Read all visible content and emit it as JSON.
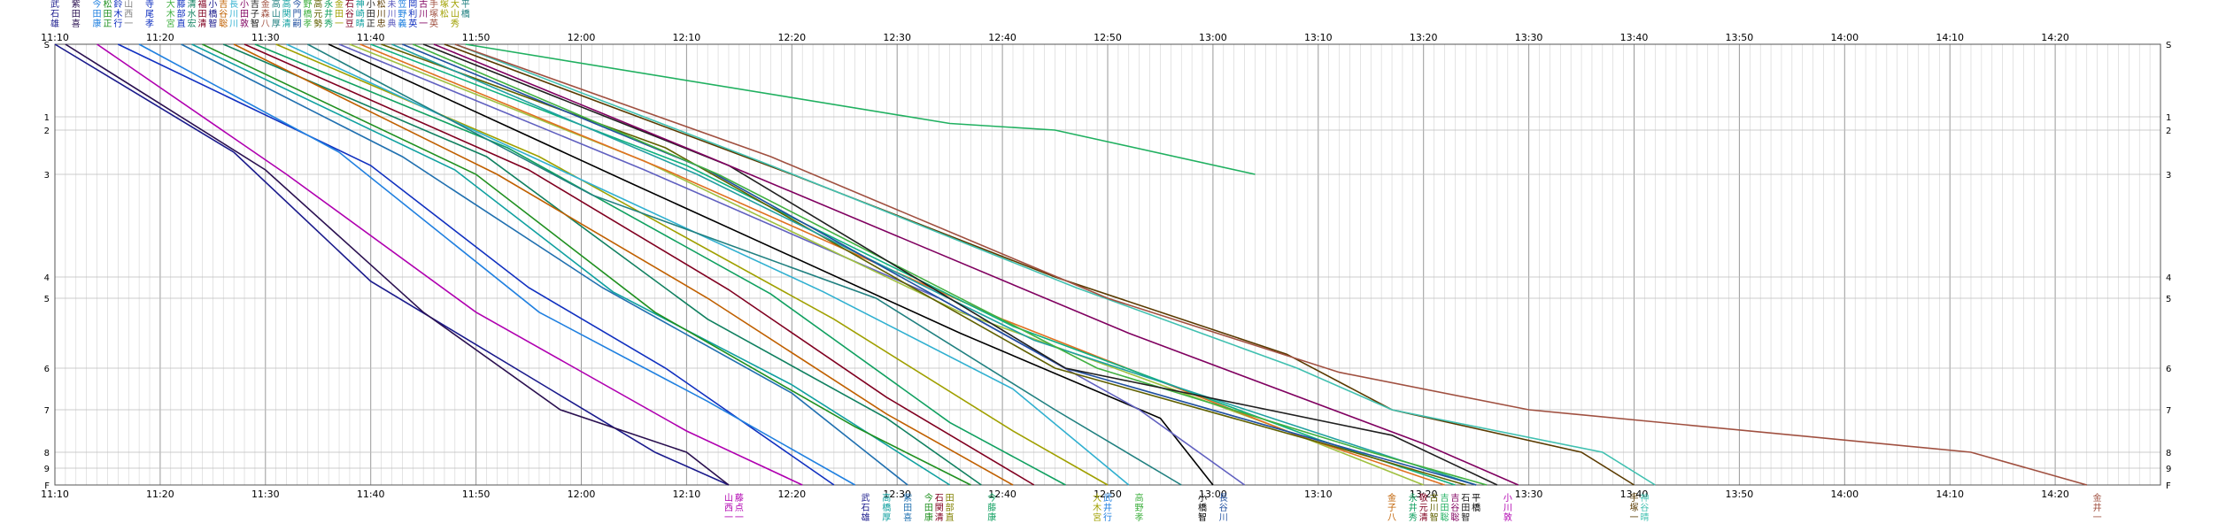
{
  "chart_data": {
    "type": "line",
    "title": "",
    "xlabel": "",
    "ylabel": "",
    "x_unit": "clock time (hh:mm)",
    "xlim": [
      "11:10",
      "14:30"
    ],
    "x_ticks": [
      "11:10",
      "11:20",
      "11:30",
      "11:40",
      "11:50",
      "12:00",
      "12:10",
      "12:20",
      "12:30",
      "12:40",
      "12:50",
      "13:00",
      "13:10",
      "13:20",
      "13:30",
      "13:40",
      "13:50",
      "14:00",
      "14:10",
      "14:20"
    ],
    "y_ticks": [
      "S",
      "1",
      "2",
      "3",
      "4",
      "5",
      "6",
      "7",
      "8",
      "9",
      "F"
    ],
    "y_order": "top-to-bottom",
    "grid": true,
    "legend": "names printed vertically at line start (top) and line end (bottom)",
    "series": [
      {
        "color": "#1a1a8c",
        "points": [
          [
            "11:10",
            "S"
          ],
          [
            "11:27",
            "2.5"
          ],
          [
            "11:40",
            "4.2"
          ],
          [
            "11:57",
            "6.5"
          ],
          [
            "12:07",
            "8"
          ],
          [
            "12:14",
            "F"
          ]
        ]
      },
      {
        "color": "#2a1050",
        "points": [
          [
            "11:11",
            "S"
          ],
          [
            "11:30",
            "2.9"
          ],
          [
            "11:45",
            "5.2"
          ],
          [
            "11:58",
            "7"
          ],
          [
            "12:10",
            "8"
          ],
          [
            "12:14",
            "F"
          ]
        ]
      },
      {
        "color": "#b000b0",
        "points": [
          [
            "11:14",
            "S"
          ],
          [
            "11:32",
            "3"
          ],
          [
            "11:50",
            "5.2"
          ],
          [
            "12:10",
            "7.5"
          ],
          [
            "12:21",
            "F"
          ]
        ]
      },
      {
        "color": "#1030c0",
        "points": [
          [
            "11:16",
            "S"
          ],
          [
            "11:40",
            "2.8"
          ],
          [
            "11:55",
            "4.5"
          ],
          [
            "12:08",
            "6"
          ],
          [
            "12:24",
            "F"
          ]
        ]
      },
      {
        "color": "#2080e0",
        "points": [
          [
            "11:18",
            "S"
          ],
          [
            "11:37",
            "2.5"
          ],
          [
            "11:56",
            "5.2"
          ],
          [
            "12:12",
            "6.8"
          ],
          [
            "12:26",
            "F"
          ]
        ]
      },
      {
        "color": "#2070b0",
        "points": [
          [
            "11:22",
            "S"
          ],
          [
            "11:43",
            "2.6"
          ],
          [
            "12:02",
            "4.5"
          ],
          [
            "12:20",
            "6.6"
          ],
          [
            "12:31",
            "F"
          ]
        ]
      },
      {
        "color": "#10a0a0",
        "points": [
          [
            "11:23",
            "S"
          ],
          [
            "11:48",
            "2.9"
          ],
          [
            "12:03",
            "4.7"
          ],
          [
            "12:20",
            "6.4"
          ],
          [
            "12:35",
            "F"
          ]
        ]
      },
      {
        "color": "#209020",
        "points": [
          [
            "11:24",
            "S"
          ],
          [
            "11:50",
            "3"
          ],
          [
            "12:07",
            "5.2"
          ],
          [
            "12:26",
            "7.4"
          ],
          [
            "12:37",
            "F"
          ]
        ]
      },
      {
        "color": "#108060",
        "points": [
          [
            "11:26",
            "S"
          ],
          [
            "11:51",
            "2.6"
          ],
          [
            "12:12",
            "5.3"
          ],
          [
            "12:29",
            "7.2"
          ],
          [
            "12:38",
            "F"
          ]
        ]
      },
      {
        "color": "#c06000",
        "points": [
          [
            "11:27",
            "S"
          ],
          [
            "11:52",
            "3"
          ],
          [
            "12:12",
            "5"
          ],
          [
            "12:29",
            "7.1"
          ],
          [
            "12:41",
            "F"
          ]
        ]
      },
      {
        "color": "#800020",
        "points": [
          [
            "11:28",
            "S"
          ],
          [
            "11:55",
            "2.9"
          ],
          [
            "12:14",
            "4.6"
          ],
          [
            "12:29",
            "6.7"
          ],
          [
            "12:43",
            "F"
          ]
        ]
      },
      {
        "color": "#10a060",
        "points": [
          [
            "11:29",
            "S"
          ],
          [
            "11:53",
            "2.4"
          ],
          [
            "12:18",
            "4.8"
          ],
          [
            "12:35",
            "7.3"
          ],
          [
            "12:46",
            "F"
          ]
        ]
      },
      {
        "color": "#a0a000",
        "points": [
          [
            "11:31",
            "S"
          ],
          [
            "11:56",
            "2.6"
          ],
          [
            "12:24",
            "5.3"
          ],
          [
            "12:41",
            "7.5"
          ],
          [
            "12:50",
            "F"
          ]
        ]
      },
      {
        "color": "#30b0d0",
        "points": [
          [
            "11:32",
            "S"
          ],
          [
            "11:58",
            "2.9"
          ],
          [
            "12:23",
            "4.7"
          ],
          [
            "12:41",
            "6.5"
          ],
          [
            "12:52",
            "F"
          ]
        ]
      },
      {
        "color": "#208080",
        "points": [
          [
            "11:34",
            "S"
          ],
          [
            "12:01",
            "3.2"
          ],
          [
            "12:28",
            "5"
          ],
          [
            "12:45",
            "7"
          ],
          [
            "12:57",
            "F"
          ]
        ]
      },
      {
        "color": "#000000",
        "points": [
          [
            "11:36",
            "S"
          ],
          [
            "12:05",
            "3.1"
          ],
          [
            "12:36",
            "5.5"
          ],
          [
            "12:55",
            "7.2"
          ],
          [
            "13:00",
            "F"
          ]
        ]
      },
      {
        "color": "#6060c0",
        "points": [
          [
            "11:37",
            "S"
          ],
          [
            "12:06",
            "2.9"
          ],
          [
            "12:34",
            "5"
          ],
          [
            "12:53",
            "7"
          ],
          [
            "13:03",
            "F"
          ]
        ]
      },
      {
        "color": "#a0c040",
        "points": [
          [
            "11:38",
            "S"
          ],
          [
            "12:06",
            "2.7"
          ],
          [
            "12:36",
            "5.2"
          ],
          [
            "13:06",
            "7.4"
          ],
          [
            "13:20",
            "F"
          ]
        ]
      },
      {
        "color": "#e07020",
        "points": [
          [
            "11:39",
            "S"
          ],
          [
            "12:08",
            "2.9"
          ],
          [
            "12:40",
            "5.3"
          ],
          [
            "13:08",
            "7.6"
          ],
          [
            "13:22",
            "F"
          ]
        ]
      },
      {
        "color": "#10b080",
        "points": [
          [
            "11:40",
            "S"
          ],
          [
            "12:10",
            "2.8"
          ],
          [
            "12:41",
            "5.4"
          ],
          [
            "13:10",
            "7.7"
          ],
          [
            "13:23",
            "F"
          ]
        ]
      },
      {
        "color": "#606000",
        "points": [
          [
            "11:41",
            "S"
          ],
          [
            "12:08",
            "2.4"
          ],
          [
            "12:45",
            "6"
          ],
          [
            "13:12",
            "7.9"
          ],
          [
            "13:24",
            "F"
          ]
        ]
      },
      {
        "color": "#20a0a0",
        "points": [
          [
            "11:42",
            "S"
          ],
          [
            "12:11",
            "3"
          ],
          [
            "12:43",
            "5.6"
          ],
          [
            "13:13",
            "7.8"
          ],
          [
            "13:25",
            "F"
          ]
        ]
      },
      {
        "color": "#2050a0",
        "points": [
          [
            "11:43",
            "S"
          ],
          [
            "12:12",
            "2.9"
          ],
          [
            "12:46",
            "6"
          ],
          [
            "13:14",
            "8"
          ],
          [
            "13:25",
            "F"
          ]
        ]
      },
      {
        "color": "#40b040",
        "points": [
          [
            "11:44",
            "S"
          ],
          [
            "12:13",
            "3"
          ],
          [
            "12:49",
            "6"
          ],
          [
            "13:15",
            "8"
          ],
          [
            "13:26",
            "F"
          ]
        ]
      },
      {
        "color": "#202020",
        "points": [
          [
            "11:45",
            "S"
          ],
          [
            "12:14",
            "2.8"
          ],
          [
            "12:46",
            "6"
          ],
          [
            "13:17",
            "7.6"
          ],
          [
            "13:27",
            "F"
          ]
        ]
      },
      {
        "color": "#800060",
        "points": [
          [
            "11:46",
            "S"
          ],
          [
            "12:12",
            "2.6"
          ],
          [
            "12:52",
            "5.5"
          ],
          [
            "13:20",
            "7.8"
          ],
          [
            "13:29",
            "F"
          ]
        ]
      },
      {
        "color": "#5a3a00",
        "points": [
          [
            "11:47",
            "S"
          ],
          [
            "12:20",
            "3"
          ],
          [
            "12:45",
            "4"
          ],
          [
            "13:07",
            "5.8"
          ],
          [
            "13:17",
            "7"
          ],
          [
            "13:35",
            "8"
          ],
          [
            "13:40",
            "F"
          ]
        ]
      },
      {
        "color": "#40c0b0",
        "points": [
          [
            "11:48",
            "S"
          ],
          [
            "12:18",
            "2.8"
          ],
          [
            "12:47",
            "4.5"
          ],
          [
            "13:08",
            "6"
          ],
          [
            "13:17",
            "7"
          ],
          [
            "13:37",
            "8"
          ],
          [
            "13:42",
            "F"
          ]
        ]
      },
      {
        "color": "#a05040",
        "points": [
          [
            "11:48",
            "S"
          ],
          [
            "12:18",
            "2.6"
          ],
          [
            "12:50",
            "5"
          ],
          [
            "13:12",
            "6.1"
          ],
          [
            "13:30",
            "7"
          ],
          [
            "14:12",
            "8"
          ],
          [
            "14:23",
            "F"
          ]
        ]
      },
      {
        "color": "#20b060",
        "points": [
          [
            "11:49",
            "S"
          ],
          [
            "12:35",
            "1.5"
          ],
          [
            "12:45",
            "2"
          ],
          [
            "13:04",
            "3"
          ]
        ]
      }
    ],
    "start_labels": [
      {
        "text": "武石雄",
        "at": "11:10",
        "color": "#1a1a8c"
      },
      {
        "text": "紫田喜",
        "at": "11:12",
        "color": "#2a1050"
      },
      {
        "text": "今田康",
        "at": "11:14",
        "color": "#2080e0"
      },
      {
        "text": "松田正",
        "at": "11:15",
        "color": "#209020"
      },
      {
        "text": "鈴木行",
        "at": "11:16",
        "color": "#1030c0"
      },
      {
        "text": "山西一",
        "at": "11:17",
        "color": "#808080"
      },
      {
        "text": "寺尾孝",
        "at": "11:19",
        "color": "#1030c0"
      },
      {
        "text": "大木宮",
        "at": "11:21",
        "color": "#40b040"
      },
      {
        "text": "藤部直",
        "at": "11:22",
        "color": "#1030c0"
      },
      {
        "text": "清水宏",
        "at": "11:23",
        "color": "#108060"
      },
      {
        "text": "福田清",
        "at": "11:24",
        "color": "#800020"
      },
      {
        "text": "小橋智",
        "at": "11:25",
        "color": "#1a1a8c"
      },
      {
        "text": "吉谷聡",
        "at": "11:26",
        "color": "#c06000"
      },
      {
        "text": "長川川",
        "at": "11:27",
        "color": "#30b0d0"
      },
      {
        "text": "小田敦",
        "at": "11:28",
        "color": "#800060"
      },
      {
        "text": "吉子智",
        "at": "11:29",
        "color": "#202020"
      },
      {
        "text": "金森八",
        "at": "11:30",
        "color": "#a05040"
      },
      {
        "text": "高山厚",
        "at": "11:31",
        "color": "#208080"
      },
      {
        "text": "高関清",
        "at": "11:32",
        "color": "#10a0a0"
      },
      {
        "text": "今門嗣",
        "at": "11:33",
        "color": "#2050a0"
      },
      {
        "text": "野橋孝",
        "at": "11:34",
        "color": "#40b040"
      },
      {
        "text": "高元勢",
        "at": "11:35",
        "color": "#606000"
      },
      {
        "text": "永井秀",
        "at": "11:36",
        "color": "#10a060"
      },
      {
        "text": "金田一",
        "at": "11:37",
        "color": "#a0a000"
      },
      {
        "text": "石谷豆",
        "at": "11:38",
        "color": "#800020"
      },
      {
        "text": "神崎晴",
        "at": "11:39",
        "color": "#10a0a0"
      },
      {
        "text": "小田正",
        "at": "11:40",
        "color": "#202020"
      },
      {
        "text": "松川忠",
        "at": "11:41",
        "color": "#5a3a00"
      },
      {
        "text": "未川典",
        "at": "11:42",
        "color": "#6060c0"
      },
      {
        "text": "笠野義",
        "at": "11:43",
        "color": "#2080e0"
      },
      {
        "text": "岡利英",
        "at": "11:44",
        "color": "#1030c0"
      },
      {
        "text": "古川一",
        "at": "11:45",
        "color": "#800060"
      },
      {
        "text": "手塚英",
        "at": "11:46",
        "color": "#a05040"
      },
      {
        "text": "塚松",
        "at": "11:47",
        "color": "#a0a000"
      },
      {
        "text": "大山秀",
        "at": "11:48",
        "color": "#a0a000"
      },
      {
        "text": "平橋",
        "at": "11:49",
        "color": "#208080"
      }
    ],
    "end_labels": [
      {
        "text": "山西一",
        "at": "12:14",
        "color": "#b000b0"
      },
      {
        "text": "藤点一",
        "at": "12:15",
        "color": "#b000b0"
      },
      {
        "text": "武石雄",
        "at": "12:27",
        "color": "#1a1a8c"
      },
      {
        "text": "高橋厚",
        "at": "12:29",
        "color": "#10a0a0"
      },
      {
        "text": "紫田喜",
        "at": "12:31",
        "color": "#2070b0"
      },
      {
        "text": "今田康",
        "at": "12:33",
        "color": "#209020"
      },
      {
        "text": "石関清",
        "at": "12:34",
        "color": "#800020"
      },
      {
        "text": "田部直",
        "at": "12:35",
        "color": "#808000"
      },
      {
        "text": "今藤康",
        "at": "12:39",
        "color": "#10a060"
      },
      {
        "text": "大木宮",
        "at": "12:49",
        "color": "#a0a000"
      },
      {
        "text": "武井行",
        "at": "12:50",
        "color": "#2080e0"
      },
      {
        "text": "高野孝",
        "at": "12:53",
        "color": "#40b040"
      },
      {
        "text": "小橋智",
        "at": "12:59",
        "color": "#000000"
      },
      {
        "text": "長谷川",
        "at": "13:01",
        "color": "#2050a0"
      },
      {
        "text": "金子八",
        "at": "13:17",
        "color": "#c06000"
      },
      {
        "text": "永井秀",
        "at": "13:19",
        "color": "#10a060"
      },
      {
        "text": "敬元清",
        "at": "13:20",
        "color": "#800020"
      },
      {
        "text": "古川智",
        "at": "13:21",
        "color": "#606000"
      },
      {
        "text": "吉田聡",
        "at": "13:22",
        "color": "#20b060"
      },
      {
        "text": "吉谷聡",
        "at": "13:23",
        "color": "#800060"
      },
      {
        "text": "石田智",
        "at": "13:24",
        "color": "#202020"
      },
      {
        "text": "平橋",
        "at": "13:25",
        "color": "#000000"
      },
      {
        "text": "小川敦",
        "at": "13:28",
        "color": "#b000b0"
      },
      {
        "text": "手塚一",
        "at": "13:40",
        "color": "#5a3a00"
      },
      {
        "text": "神谷晴",
        "at": "13:41",
        "color": "#40c0b0"
      },
      {
        "text": "金井一",
        "at": "14:24",
        "color": "#a05040"
      }
    ]
  }
}
